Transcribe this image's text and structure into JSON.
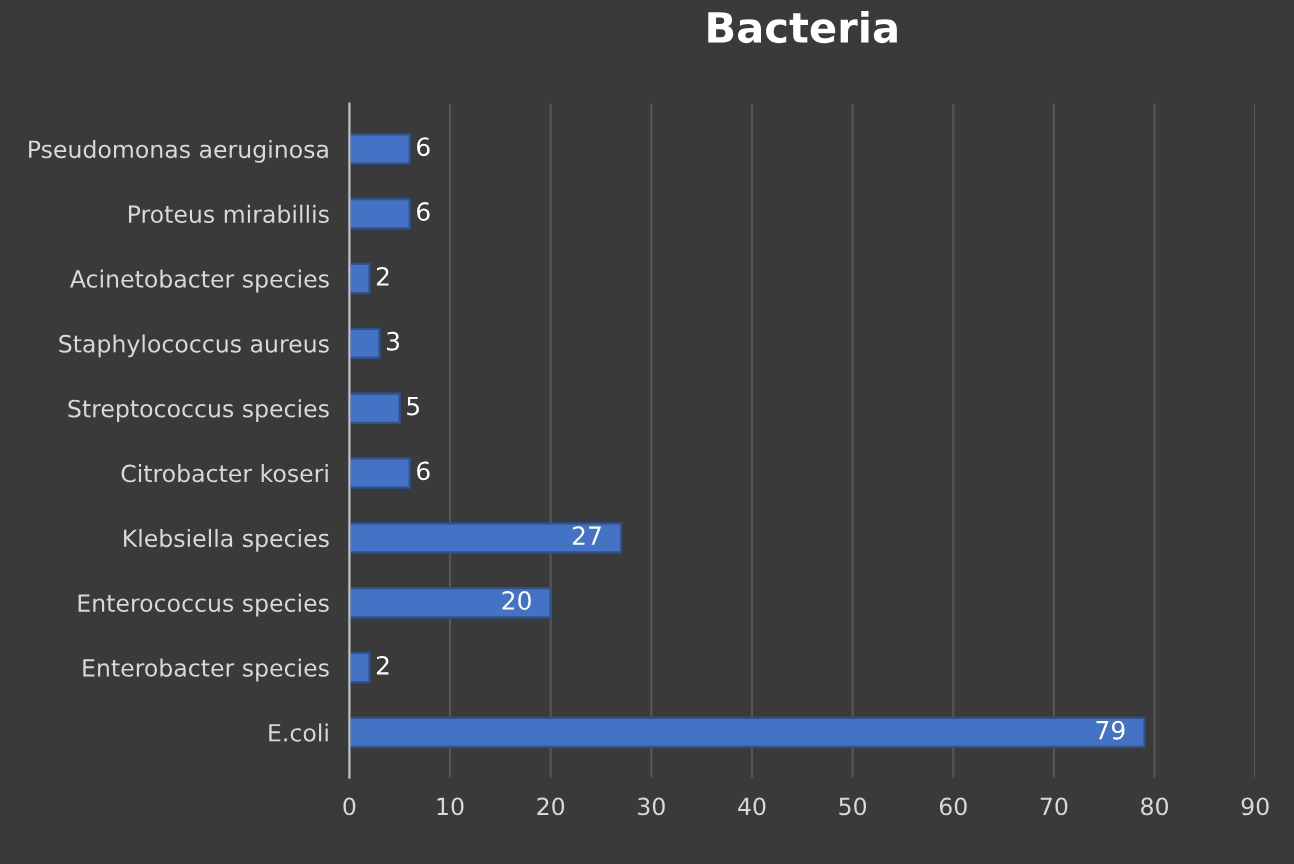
{
  "chart_data": {
    "type": "bar",
    "orientation": "horizontal",
    "title": "Bacteria",
    "categories": [
      "Pseudomonas aeruginosa",
      "Proteus mirabillis",
      "Acinetobacter species",
      "Staphylococcus aureus",
      "Streptococcus species",
      "Citrobacter koseri",
      "Klebsiella species",
      "Enterococcus species",
      "Enterobacter species",
      "E.coli"
    ],
    "values": [
      6,
      6,
      2,
      3,
      5,
      6,
      27,
      20,
      2,
      79
    ],
    "color": "#4472c4",
    "xlim": [
      0,
      90
    ],
    "xticks": [
      0,
      10,
      20,
      30,
      40,
      50,
      60,
      70,
      80,
      90
    ],
    "grid": "x",
    "data_labels": true
  }
}
